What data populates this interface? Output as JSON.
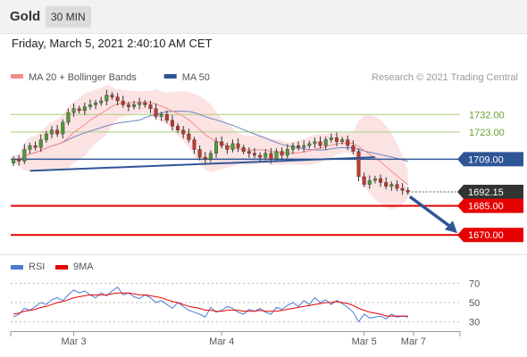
{
  "header": {
    "title": "Gold",
    "timeframe": "30 MIN",
    "datetime": "Friday, March 5, 2021 2:40:10 AM CET"
  },
  "chart_data": {
    "type": "candlestick",
    "legend": [
      {
        "label": "MA 20 + Bollinger Bands",
        "color": "#f28b8b"
      },
      {
        "label": "MA 50",
        "color": "#2f5597"
      }
    ],
    "credit": "Research © 2021 Trading Central",
    "price_axis": {
      "min": 1660,
      "max": 1745
    },
    "resistance_levels": [
      {
        "label": "1732.00",
        "value": 1732.0,
        "color": "#a9cf7a"
      },
      {
        "label": "1723.00",
        "value": 1723.0,
        "color": "#a9cf7a"
      }
    ],
    "pivot_level": {
      "label": "1709.00",
      "value": 1709.0,
      "color": "#2f5597"
    },
    "last_price": {
      "label": "1692.15",
      "value": 1692.15,
      "color": "#333333"
    },
    "support_levels": [
      {
        "label": "1685.00",
        "value": 1685.0,
        "color": "#e60000"
      },
      {
        "label": "1670.00",
        "value": 1670.0,
        "color": "#e60000"
      }
    ],
    "x_labels": [
      {
        "label": "Mar 3",
        "index": 11
      },
      {
        "label": "Mar 4",
        "index": 38
      },
      {
        "label": "Mar 5",
        "index": 64
      },
      {
        "label": "Mar 7",
        "index": 73
      }
    ],
    "trendline": {
      "from": {
        "index": 3,
        "price": 1703
      },
      "to": {
        "index": 66,
        "price": 1710
      }
    },
    "forecast_arrow": {
      "from": {
        "index": 73,
        "price": 1692
      },
      "to": {
        "index": 80,
        "price": 1670
      }
    },
    "closes": [
      1709,
      1708,
      1714,
      1716,
      1715,
      1719,
      1722,
      1724,
      1722,
      1728,
      1733,
      1735,
      1734,
      1736,
      1737,
      1738,
      1739,
      1742,
      1741,
      1739,
      1737,
      1736,
      1737,
      1738,
      1737,
      1735,
      1731,
      1732,
      1729,
      1726,
      1724,
      1722,
      1719,
      1714,
      1710,
      1709,
      1712,
      1718,
      1716,
      1714,
      1717,
      1715,
      1713,
      1712,
      1711,
      1710,
      1712,
      1709,
      1713,
      1711,
      1714,
      1716,
      1715,
      1716,
      1717,
      1718,
      1716,
      1719,
      1720,
      1718,
      1719,
      1716,
      1713,
      1700,
      1696,
      1698,
      1699,
      1697,
      1695,
      1696,
      1694,
      1693,
      1692
    ],
    "rsi": {
      "label": "RSI",
      "color": "#4a7bd4",
      "levels": [
        70,
        50,
        30
      ],
      "values": [
        35,
        38,
        44,
        42,
        46,
        50,
        48,
        53,
        55,
        52,
        58,
        63,
        60,
        62,
        58,
        55,
        60,
        57,
        62,
        66,
        58,
        60,
        56,
        54,
        58,
        55,
        50,
        52,
        48,
        44,
        50,
        46,
        42,
        40,
        38,
        35,
        45,
        40,
        42,
        46,
        44,
        40,
        38,
        43,
        41,
        44,
        40,
        38,
        45,
        43,
        47,
        50,
        46,
        52,
        48,
        55,
        50,
        53,
        48,
        52,
        49,
        45,
        40,
        30,
        38,
        34,
        35,
        36,
        33,
        38,
        35,
        36,
        35
      ],
      "ma_label": "9MA",
      "ma_color": "#e60000",
      "ma_values": [
        38,
        39,
        41,
        42,
        43,
        45,
        46,
        48,
        50,
        51,
        53,
        55,
        56,
        57,
        58,
        58,
        58,
        58,
        59,
        60,
        60,
        60,
        59,
        58,
        58,
        57,
        56,
        55,
        53,
        51,
        50,
        48,
        46,
        45,
        44,
        42,
        42,
        41,
        41,
        42,
        42,
        42,
        41,
        41,
        41,
        42,
        41,
        41,
        41,
        42,
        43,
        44,
        45,
        46,
        47,
        48,
        49,
        50,
        50,
        51,
        50,
        49,
        47,
        44,
        42,
        40,
        39,
        38,
        36,
        36,
        36,
        36,
        36
      ]
    }
  }
}
